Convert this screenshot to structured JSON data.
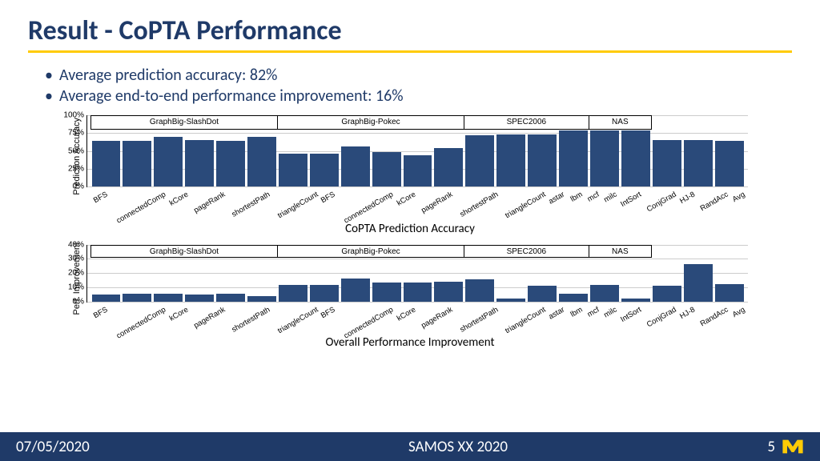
{
  "colors": {
    "navy": "#1f3a68",
    "yellow": "#ffcb05",
    "bar": "#2a4a7a",
    "footerBg": "#1f3a68",
    "footerText": "#ffffff",
    "logoMaize": "#ffcb05",
    "logoBlue": "#00274c"
  },
  "title": "Result - CoPTA Performance",
  "bullets": [
    "Average prediction accuracy: 82%",
    "Average end-to-end performance improvement: 16%"
  ],
  "groups": [
    {
      "label": "GraphBig-SlashDot",
      "count": 6
    },
    {
      "label": "GraphBig-Pokec",
      "count": 6
    },
    {
      "label": "SPEC2006",
      "count": 4
    },
    {
      "label": "NAS",
      "count": 2
    }
  ],
  "tailLabels": [
    "HJ-8",
    "RandAcc",
    "Avg"
  ],
  "xlabels": [
    "BFS",
    "connectedComp",
    "kCore",
    "pageRank",
    "shortestPath",
    "triangleCount",
    "BFS",
    "connectedComp",
    "kCore",
    "pageRank",
    "shortestPath",
    "triangleCount",
    "astar",
    "lbm",
    "mcf",
    "milc",
    "IntSort",
    "ConjGrad",
    "HJ-8",
    "RandAcc",
    "Avg"
  ],
  "chart1": {
    "ylabel": "Prediction Accuracy",
    "caption": "CoPTA Prediction Accuracy",
    "ylim": [
      0,
      100
    ],
    "yticks": [
      0,
      25,
      50,
      75,
      100
    ],
    "ytickSuffix": "%",
    "height": 90,
    "groupHeaderHeight": 18,
    "values": [
      80,
      80,
      88,
      82,
      80,
      88,
      58,
      58,
      70,
      60,
      55,
      68,
      90,
      92,
      92,
      98,
      98,
      98,
      82,
      82,
      80
    ]
  },
  "chart2": {
    "ylabel": "Perf. Improvement",
    "caption": "Overall Performance Improvement",
    "ylim": [
      0,
      40
    ],
    "yticks": [
      0,
      10,
      20,
      30,
      40
    ],
    "ytickSuffix": "%",
    "height": 72,
    "groupHeaderHeight": 16,
    "values": [
      6,
      7,
      7,
      6,
      7,
      5,
      15,
      15,
      21,
      17,
      17,
      18,
      20,
      3,
      14,
      7,
      15,
      3,
      14,
      34,
      16
    ]
  },
  "footer": {
    "date": "07/05/2020",
    "venue": "SAMOS XX 2020",
    "page": "5"
  }
}
